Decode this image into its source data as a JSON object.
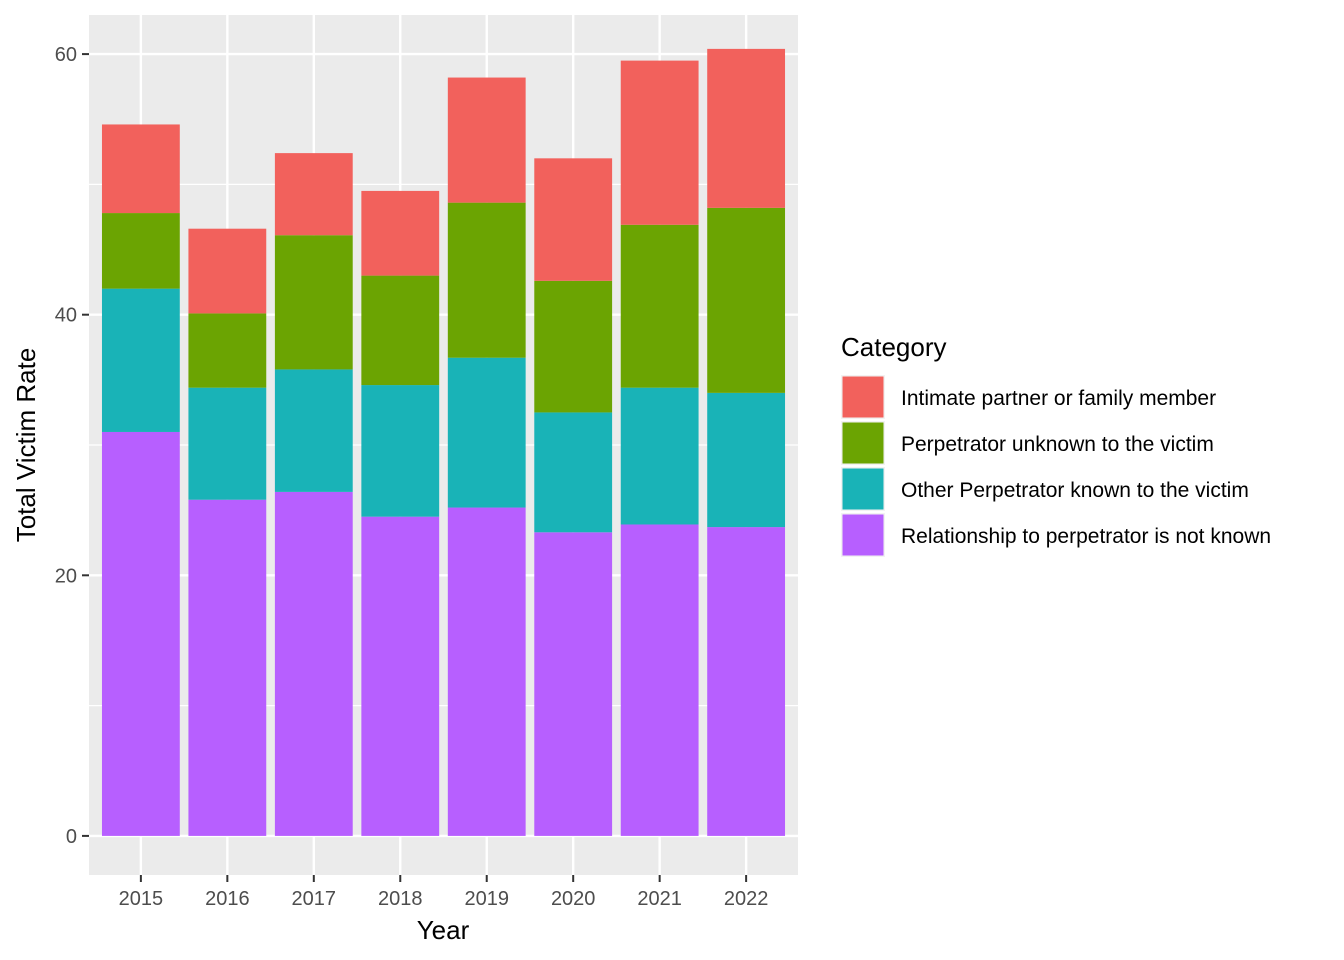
{
  "chart_data": {
    "type": "bar",
    "stacked": true,
    "title": "",
    "xlabel": "Year",
    "ylabel": "Total Victim Rate",
    "categories": [
      "2015",
      "2016",
      "2017",
      "2018",
      "2019",
      "2020",
      "2021",
      "2022"
    ],
    "ylim": [
      -3,
      63
    ],
    "yticks": [
      0,
      20,
      40,
      60
    ],
    "grid": true,
    "legend_title": "Category",
    "legend_position": "right",
    "series": [
      {
        "name": "Relationship to perpetrator is not known",
        "color": "#B75FFF",
        "values": [
          31.0,
          25.8,
          26.4,
          24.5,
          25.2,
          23.3,
          23.9,
          23.7
        ]
      },
      {
        "name": "Other Perpetrator known to the victim",
        "color": "#19B3B7",
        "values": [
          11.0,
          8.6,
          9.4,
          10.1,
          11.5,
          9.2,
          10.5,
          10.3
        ]
      },
      {
        "name": "Perpetrator unknown to the victim",
        "color": "#6BA402",
        "values": [
          5.8,
          5.7,
          10.3,
          8.4,
          11.9,
          10.1,
          12.5,
          14.2
        ]
      },
      {
        "name": "Intimate partner or family member",
        "color": "#F2615C",
        "values": [
          6.8,
          6.5,
          6.3,
          6.5,
          9.6,
          9.4,
          12.6,
          12.2
        ]
      }
    ],
    "legend_order": [
      3,
      2,
      1,
      0
    ]
  }
}
